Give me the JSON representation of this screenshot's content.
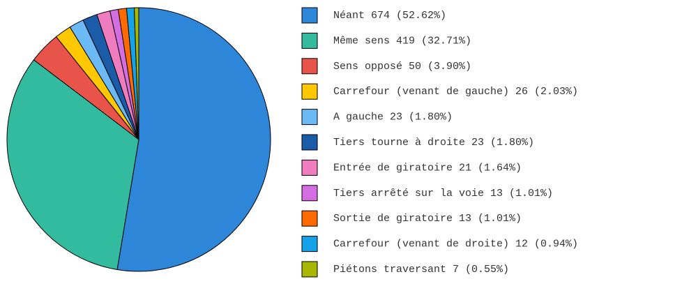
{
  "chart_data": {
    "type": "pie",
    "categories": [
      "Néant",
      "Même sens",
      "Sens opposé",
      "Carrefour (venant de gauche)",
      "A gauche",
      "Tiers tourne à droite",
      "Entrée de giratoire",
      "Tiers arrêté sur la voie",
      "Sortie de giratoire",
      "Carrefour (venant de droite)",
      "Piétons traversant"
    ],
    "values": [
      674,
      419,
      50,
      26,
      23,
      23,
      21,
      13,
      13,
      12,
      7
    ],
    "value_labels": [
      "674 (52.62%)",
      "419 (32.71%)",
      "50 (3.90%)",
      "26 (2.03%)",
      "23 (1.80%)",
      "23 (1.80%)",
      "21 (1.64%)",
      "13 (1.01%)",
      "13 (1.01%)",
      "12 (0.94%)",
      "7 (0.55%)"
    ],
    "colors": [
      "#2e86d9",
      "#33bba0",
      "#e8534a",
      "#ffc800",
      "#6bbaf5",
      "#1a5ca8",
      "#f07cc0",
      "#d46ee0",
      "#ff6a00",
      "#14a3e8",
      "#a8b800"
    ],
    "legend": "right"
  }
}
